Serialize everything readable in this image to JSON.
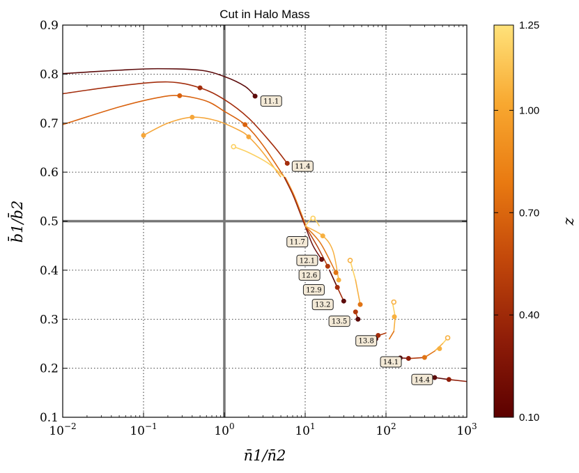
{
  "chart_data": {
    "type": "line",
    "title": "Cut in Halo Mass",
    "xlabel": "n̄1/n̄2",
    "ylabel": "b̄1/b̄2",
    "xscale": "log",
    "xlim": [
      0.01,
      1000
    ],
    "ylim": [
      0.1,
      0.9
    ],
    "xticks": [
      0.01,
      0.1,
      1,
      10,
      100,
      1000
    ],
    "xtick_labels": [
      {
        "base": "10",
        "exp": "−2"
      },
      {
        "base": "10",
        "exp": "−1"
      },
      {
        "base": "10",
        "exp": "0"
      },
      {
        "base": "10",
        "exp": "1"
      },
      {
        "base": "10",
        "exp": "2"
      },
      {
        "base": "10",
        "exp": "3"
      }
    ],
    "yticks": [
      0.1,
      0.2,
      0.3,
      0.4,
      0.5,
      0.6,
      0.7,
      0.8,
      0.9
    ],
    "ytick_labels": [
      "0.1",
      "0.2",
      "0.3",
      "0.4",
      "0.5",
      "0.6",
      "0.7",
      "0.8",
      "0.9"
    ],
    "grid": true,
    "reference_lines": {
      "x": 1,
      "y": 0.5
    },
    "colorbar": {
      "label": "z",
      "range": [
        0.1,
        1.25
      ],
      "ticks": [
        "0.10",
        "0.40",
        "0.70",
        "1.00",
        "1.25"
      ],
      "tick_values": [
        0.1,
        0.4,
        0.7,
        1.0,
        1.25
      ],
      "colormap": [
        "#5c0000",
        "#8f1d08",
        "#c2470a",
        "#e97a11",
        "#f8a830",
        "#ffe27a"
      ]
    },
    "series": [
      {
        "name": "z=0.10",
        "z": 0.1,
        "color": "#5c0b0b",
        "x": [
          0.01,
          0.05,
          0.15,
          0.5,
          1.0,
          1.8,
          2.4
        ],
        "y": [
          0.801,
          0.808,
          0.811,
          0.808,
          0.795,
          0.775,
          0.755
        ],
        "markers": [
          {
            "x": 2.4,
            "y": 0.755
          }
        ]
      },
      {
        "name": "z=0.40",
        "z": 0.4,
        "color": "#a32d0c",
        "x": [
          0.01,
          0.05,
          0.2,
          0.5,
          1.0,
          2.0,
          4.0,
          6.0
        ],
        "y": [
          0.76,
          0.776,
          0.784,
          0.772,
          0.748,
          0.71,
          0.655,
          0.618
        ],
        "markers": [
          {
            "x": 0.5,
            "y": 0.772
          },
          {
            "x": 6.0,
            "y": 0.618
          }
        ]
      },
      {
        "name": "z=0.70",
        "z": 0.7,
        "color": "#d9620e",
        "x": [
          0.01,
          0.05,
          0.15,
          0.28,
          0.6,
          1.0,
          1.8,
          3.0,
          5.5
        ],
        "y": [
          0.697,
          0.733,
          0.752,
          0.756,
          0.745,
          0.724,
          0.697,
          0.655,
          0.59
        ],
        "markers": [
          {
            "x": 0.28,
            "y": 0.756
          },
          {
            "x": 1.8,
            "y": 0.697
          }
        ]
      },
      {
        "name": "z=1.00",
        "z": 1.0,
        "color": "#f5a63a",
        "x": [
          0.1,
          0.2,
          0.4,
          0.8,
          1.5,
          2.0,
          3.0,
          5.0
        ],
        "y": [
          0.675,
          0.7,
          0.712,
          0.705,
          0.686,
          0.672,
          0.64,
          0.59
        ],
        "markers": [
          {
            "x": 0.1,
            "y": 0.675
          },
          {
            "x": 0.4,
            "y": 0.712
          },
          {
            "x": 2.0,
            "y": 0.672
          }
        ]
      },
      {
        "name": "z=1.25",
        "z": 1.25,
        "color": "#fcd060",
        "x": [
          1.3,
          2.0,
          3.5,
          5.5
        ],
        "y": [
          0.652,
          0.64,
          0.618,
          0.59
        ],
        "markers": [
          {
            "x": 1.3,
            "y": 0.652,
            "hollow": true
          }
        ]
      }
    ],
    "converge_branch": {
      "x": [
        5.5,
        7.0,
        8.5,
        10.0
      ],
      "y": [
        0.59,
        0.555,
        0.52,
        0.49
      ]
    },
    "fan_tracks": [
      {
        "z": 0.1,
        "color": "#6b0f0f",
        "x": [
          10.0,
          12.5,
          16.0
        ],
        "y": [
          0.49,
          0.45,
          0.422
        ],
        "markers": [
          {
            "x": 16.0,
            "y": 0.422
          }
        ]
      },
      {
        "z": 0.4,
        "color": "#b23a0c",
        "x": [
          10.0,
          14.0,
          19.0
        ],
        "y": [
          0.49,
          0.45,
          0.408
        ],
        "markers": [
          {
            "x": 19.0,
            "y": 0.408
          }
        ]
      },
      {
        "z": 0.7,
        "color": "#e07415",
        "x": [
          10.0,
          15.5,
          24.0
        ],
        "y": [
          0.49,
          0.455,
          0.395
        ],
        "markers": [
          {
            "x": 24.0,
            "y": 0.395
          }
        ]
      },
      {
        "z": 1.0,
        "color": "#f7b040",
        "x": [
          10.0,
          16.5,
          22.0,
          26.0
        ],
        "y": [
          0.49,
          0.47,
          0.44,
          0.38
        ],
        "markers": [
          {
            "x": 16.5,
            "y": 0.47
          },
          {
            "x": 26.0,
            "y": 0.38
          }
        ]
      },
      {
        "z": 1.25,
        "color": "#fcd060",
        "x": [
          10.0,
          12.5,
          15.0
        ],
        "y": [
          0.49,
          0.506,
          0.49
        ],
        "markers": [
          {
            "x": 12.5,
            "y": 0.506,
            "hollow": true
          }
        ]
      }
    ],
    "tracks": [
      {
        "x": [
          20,
          25,
          30
        ],
        "y": [
          0.4,
          0.365,
          0.337
        ],
        "colors": [
          "#5c0b0b",
          "#a32d0c",
          "#5c0b0b"
        ],
        "markers": [
          {
            "x": 25,
            "y": 0.365,
            "c": "#a32d0c"
          },
          {
            "x": 30,
            "y": 0.337,
            "c": "#5c0b0b"
          }
        ]
      },
      {
        "x": [
          36,
          42,
          48
        ],
        "y": [
          0.42,
          0.38,
          0.33
        ],
        "colors": [
          "#fcd060",
          "#f7b040",
          "#e07415"
        ],
        "markers": [
          {
            "x": 36,
            "y": 0.42,
            "c": "#f7b040",
            "hollow": true
          },
          {
            "x": 48,
            "y": 0.33,
            "c": "#e07415"
          }
        ]
      },
      {
        "x": [
          42,
          44,
          45
        ],
        "y": [
          0.315,
          0.305,
          0.3
        ],
        "colors": [
          "#b23a0c",
          "#5c0b0b",
          "#5c0b0b"
        ],
        "markers": [
          {
            "x": 42,
            "y": 0.315,
            "c": "#b23a0c"
          },
          {
            "x": 45,
            "y": 0.3,
            "c": "#5c0b0b"
          }
        ]
      },
      {
        "x": [
          120,
          130,
          125,
          110
        ],
        "y": [
          0.335,
          0.305,
          0.275,
          0.26
        ],
        "colors": [
          "#fcd060",
          "#f7b040",
          "#e07415",
          "#d9620e"
        ],
        "markers": [
          {
            "x": 125,
            "y": 0.335,
            "c": "#f7b040",
            "hollow": true
          },
          {
            "x": 127,
            "y": 0.305,
            "c": "#f7b040"
          }
        ]
      },
      {
        "x": [
          75,
          85,
          100
        ],
        "y": [
          0.26,
          0.268,
          0.272
        ],
        "colors": [
          "#5c0b0b",
          "#b23a0c",
          "#d9620e"
        ],
        "markers": [
          {
            "x": 75,
            "y": 0.26,
            "c": "#5c0b0b"
          },
          {
            "x": 80,
            "y": 0.267,
            "c": "#a32d0c"
          }
        ]
      },
      {
        "x": [
          580,
          500,
          400,
          300,
          200,
          150
        ],
        "y": [
          0.262,
          0.25,
          0.235,
          0.222,
          0.22,
          0.221
        ],
        "colors": [
          "#fcd060",
          "#f7b040",
          "#e07415",
          "#b23a0c",
          "#7a1410",
          "#5c0b0b"
        ],
        "markers": [
          {
            "x": 580,
            "y": 0.262,
            "c": "#f7b040",
            "hollow": true
          },
          {
            "x": 460,
            "y": 0.24,
            "c": "#f7b040"
          },
          {
            "x": 300,
            "y": 0.222,
            "c": "#e07415"
          },
          {
            "x": 190,
            "y": 0.22,
            "c": "#8f1d08"
          },
          {
            "x": 150,
            "y": 0.221,
            "c": "#5c0b0b"
          }
        ]
      },
      {
        "x": [
          400,
          600,
          1000
        ],
        "y": [
          0.181,
          0.177,
          0.173
        ],
        "colors": [
          "#5c0b0b",
          "#8f1d08",
          "#8f1d08"
        ],
        "markers": [
          {
            "x": 400,
            "y": 0.181,
            "c": "#5c0b0b"
          },
          {
            "x": 600,
            "y": 0.177,
            "c": "#8f1d08"
          }
        ]
      }
    ],
    "annotations": [
      {
        "text": "11.1",
        "x": 3.8,
        "y": 0.745
      },
      {
        "text": "11.4",
        "x": 9.3,
        "y": 0.612
      },
      {
        "text": "11.7",
        "x": 8.0,
        "y": 0.458
      },
      {
        "text": "12.1",
        "x": 10.6,
        "y": 0.42
      },
      {
        "text": "12.6",
        "x": 11.3,
        "y": 0.39
      },
      {
        "text": "12.9",
        "x": 12.8,
        "y": 0.36
      },
      {
        "text": "13.2",
        "x": 16.5,
        "y": 0.33
      },
      {
        "text": "13.5",
        "x": 26.5,
        "y": 0.296
      },
      {
        "text": "13.8",
        "x": 57.0,
        "y": 0.256
      },
      {
        "text": "14.1",
        "x": 115.0,
        "y": 0.213
      },
      {
        "text": "14.4",
        "x": 280.0,
        "y": 0.177
      }
    ]
  }
}
